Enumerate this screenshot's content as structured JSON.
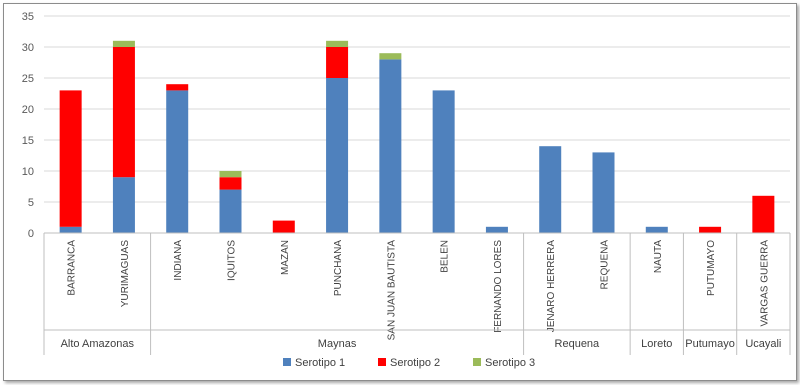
{
  "chart_data": {
    "type": "bar",
    "stacked": true,
    "title": "",
    "xlabel": "",
    "ylabel": "",
    "ylim": [
      0,
      35
    ],
    "yticks": [
      0,
      5,
      10,
      15,
      20,
      25,
      30,
      35
    ],
    "grid": true,
    "legend_position": "bottom",
    "categories": [
      "BARRANCA",
      "YURIMAGUAS",
      "INDIANA",
      "IQUITOS",
      "MAZAN",
      "PUNCHANA",
      "SAN JUAN BAUTISTA",
      "BELEN",
      "FERNANDO LORES",
      "JENARO HERRERA",
      "REQUENA",
      "NAUTA",
      "PUTUMAYO",
      "VARGAS GUERRA"
    ],
    "groups": [
      {
        "name": "Alto Amazonas",
        "start": 0,
        "end": 1
      },
      {
        "name": "Maynas",
        "start": 2,
        "end": 8
      },
      {
        "name": "Requena",
        "start": 9,
        "end": 10
      },
      {
        "name": "Loreto",
        "start": 11,
        "end": 11
      },
      {
        "name": "Putumayo",
        "start": 12,
        "end": 12
      },
      {
        "name": "Ucayali",
        "start": 13,
        "end": 13
      }
    ],
    "series": [
      {
        "name": "Serotipo 1",
        "color": "#4f81bd",
        "values": [
          1,
          9,
          23,
          7,
          0,
          25,
          28,
          23,
          1,
          14,
          13,
          1,
          0,
          0
        ]
      },
      {
        "name": "Serotipo 2",
        "color": "#ff0000",
        "values": [
          22,
          21,
          1,
          2,
          2,
          5,
          0,
          0,
          0,
          0,
          0,
          0,
          1,
          6
        ]
      },
      {
        "name": "Serotipo 3",
        "color": "#9bbb59",
        "values": [
          0,
          1,
          0,
          1,
          0,
          1,
          1,
          0,
          0,
          0,
          0,
          0,
          0,
          0
        ]
      }
    ]
  }
}
